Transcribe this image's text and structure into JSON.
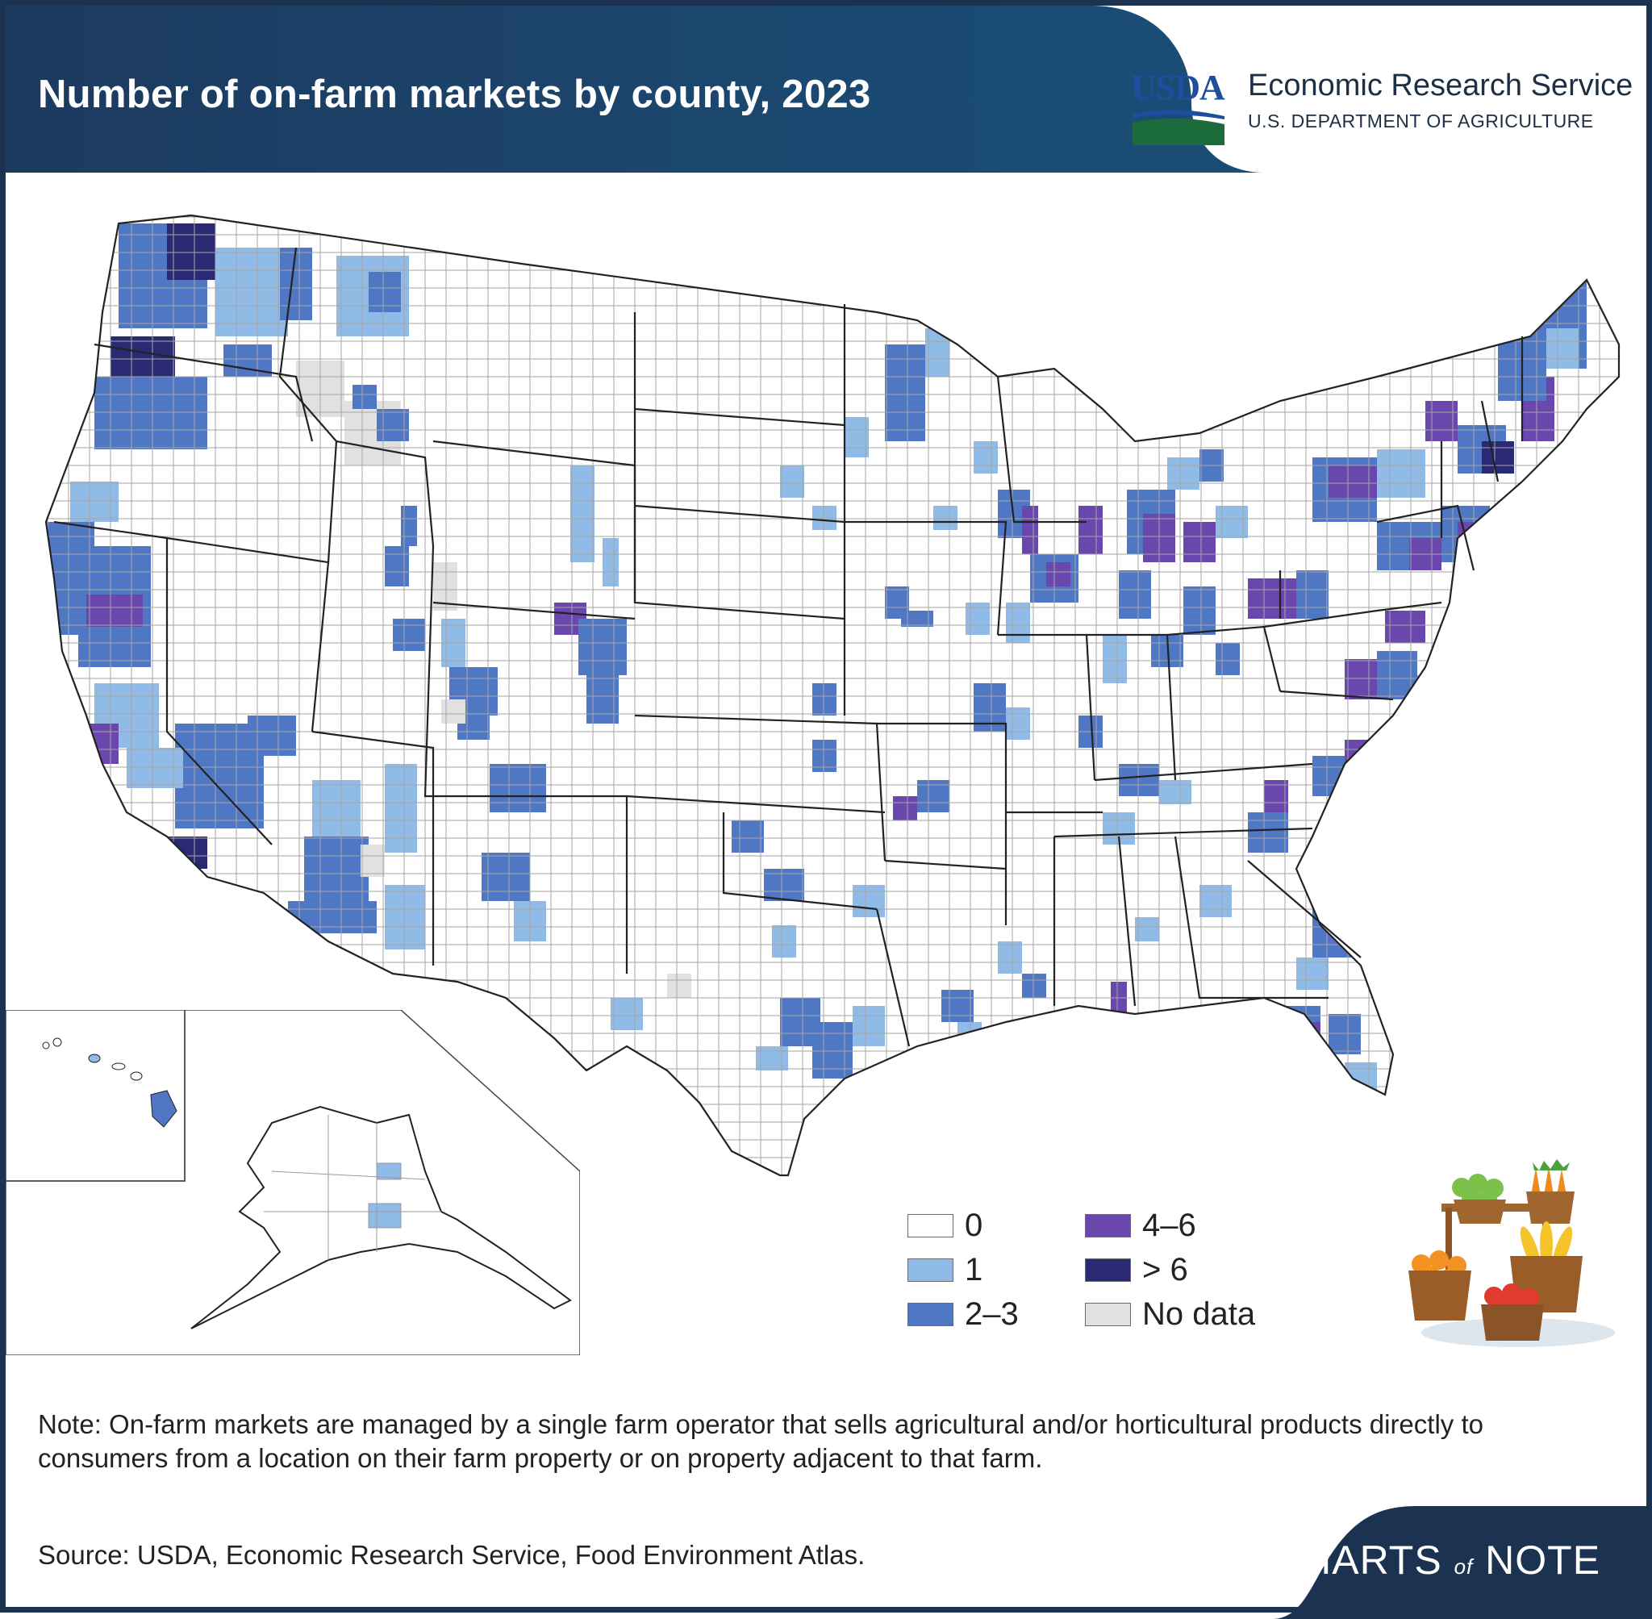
{
  "header": {
    "title": "Number of on-farm markets by county, 2023",
    "logo_text": "USDA",
    "agency": "Economic Research Service",
    "department": "U.S. DEPARTMENT OF AGRICULTURE"
  },
  "legend": {
    "items": [
      {
        "label": "0",
        "color": "#ffffff"
      },
      {
        "label": "1",
        "color": "#8fbbe6"
      },
      {
        "label": "2–3",
        "color": "#5077c4"
      },
      {
        "label": "4–6",
        "color": "#6a47ad"
      },
      {
        "label": "> 6",
        "color": "#2a2a74"
      },
      {
        "label": "No data",
        "color": "#e1e1e1"
      }
    ]
  },
  "note": "Note: On-farm markets are managed by a single farm operator that sells agricultural and/or horticultural products directly to consumers from a location on their farm property or on property adjacent to that farm.",
  "source": "Source: USDA, Economic Research Service, Food Environment Atlas.",
  "branding": {
    "charts": "CHARTS",
    "of": "of",
    "note": "NOTE"
  },
  "colors": {
    "header": "#1d3a5f",
    "border": "#1b3350",
    "state_line": "#222222",
    "county_line": "#9a9a9a"
  }
}
